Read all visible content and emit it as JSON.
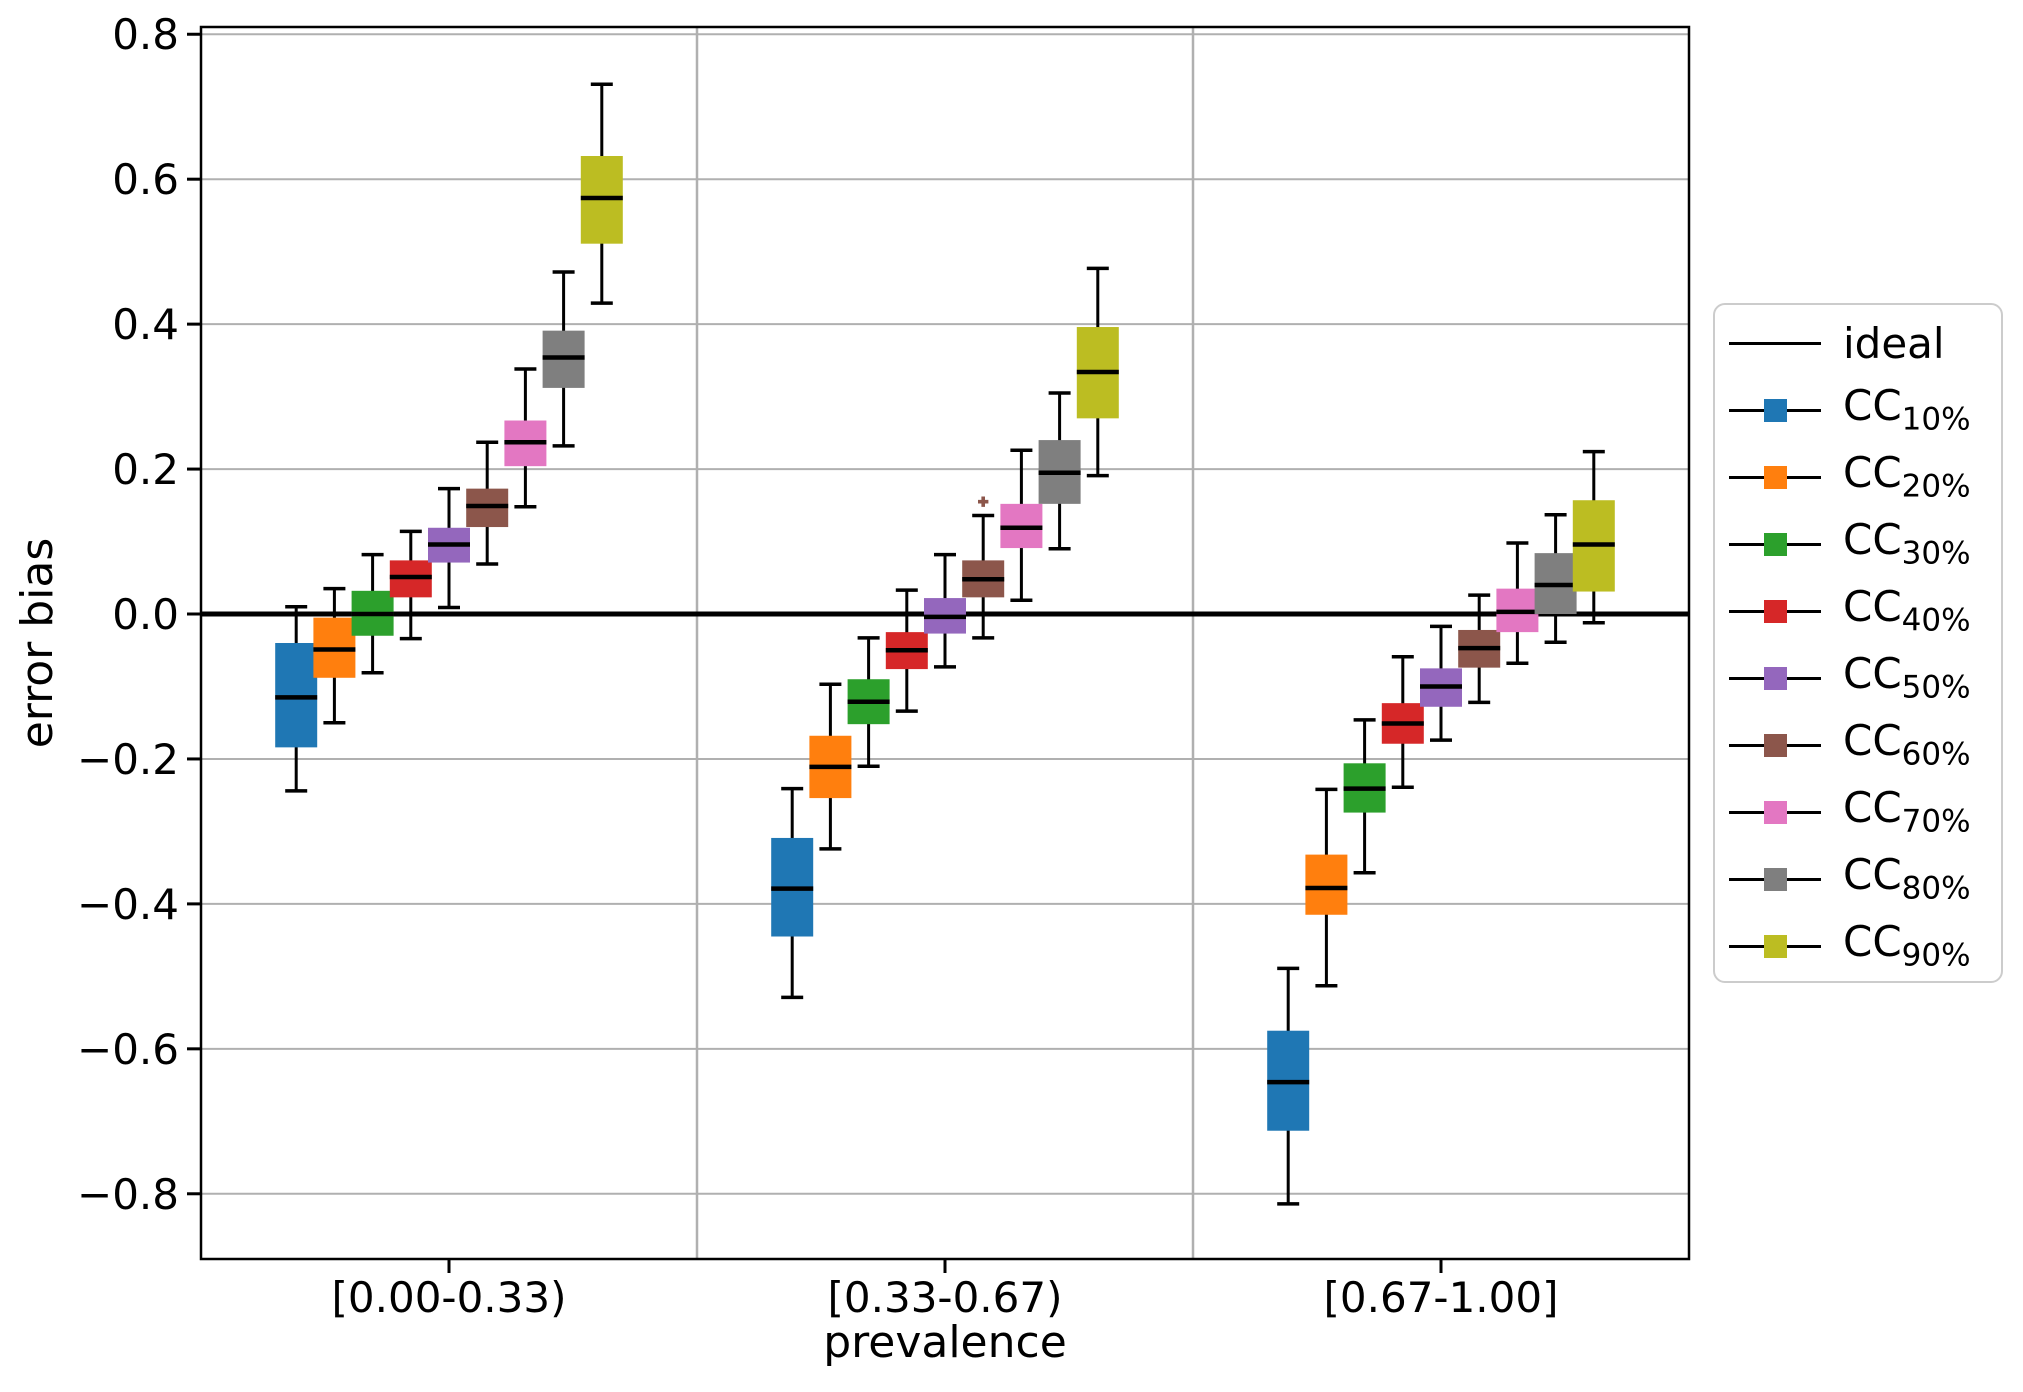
{
  "figure": {
    "background": "#ffffff",
    "grid_color": "#b0b0b0",
    "spine_color": "#000000"
  },
  "chart_data": {
    "type": "boxplot",
    "title": "",
    "xlabel": "prevalence",
    "ylabel": "error bias",
    "categories": [
      "[0.00-0.33)",
      "[0.33-0.67)",
      "[0.67-1.00]"
    ],
    "yticks": [
      0.8,
      0.6,
      0.4,
      0.2,
      0.0,
      -0.2,
      -0.4,
      -0.6,
      -0.8
    ],
    "yticklabels": [
      "0.8",
      "0.6",
      "0.4",
      "0.2",
      "0.0",
      "−0.2",
      "−0.4",
      "−0.6",
      "−0.8"
    ],
    "ylim": [
      -0.89,
      0.81
    ],
    "grid": true,
    "legend_position": "right-outside",
    "ideal_label": "ideal",
    "ideal_line_y": 0.0,
    "box_format": [
      "whislo",
      "q1",
      "median",
      "q3",
      "whishi"
    ],
    "series": [
      {
        "name": "CC",
        "sub": "10%",
        "color": "#1f77b4",
        "boxes": [
          [
            -0.244,
            -0.184,
            -0.115,
            -0.04,
            0.01
          ],
          [
            -0.529,
            -0.445,
            -0.379,
            -0.309,
            -0.241
          ],
          [
            -0.814,
            -0.713,
            -0.646,
            -0.575,
            -0.489
          ]
        ],
        "fliers": [
          [],
          [],
          []
        ]
      },
      {
        "name": "CC",
        "sub": "20%",
        "color": "#ff7f0e",
        "boxes": [
          [
            -0.15,
            -0.088,
            -0.049,
            -0.005,
            0.035
          ],
          [
            -0.324,
            -0.254,
            -0.211,
            -0.168,
            -0.097
          ],
          [
            -0.513,
            -0.415,
            -0.378,
            -0.332,
            -0.242
          ]
        ],
        "fliers": [
          [],
          [],
          []
        ]
      },
      {
        "name": "CC",
        "sub": "30%",
        "color": "#2ca02c",
        "boxes": [
          [
            -0.081,
            -0.03,
            0.0,
            0.032,
            0.082
          ],
          [
            -0.21,
            -0.152,
            -0.121,
            -0.09,
            -0.033
          ],
          [
            -0.357,
            -0.274,
            -0.241,
            -0.206,
            -0.146
          ]
        ],
        "fliers": [
          [],
          [],
          []
        ]
      },
      {
        "name": "CC",
        "sub": "40%",
        "color": "#d62728",
        "boxes": [
          [
            -0.034,
            0.023,
            0.051,
            0.074,
            0.114
          ],
          [
            -0.134,
            -0.076,
            -0.05,
            -0.025,
            0.033
          ],
          [
            -0.239,
            -0.179,
            -0.151,
            -0.123,
            -0.059
          ]
        ],
        "fliers": [
          [],
          [],
          []
        ]
      },
      {
        "name": "CC",
        "sub": "50%",
        "color": "#9467bd",
        "boxes": [
          [
            0.009,
            0.071,
            0.096,
            0.119,
            0.173
          ],
          [
            -0.073,
            -0.027,
            -0.004,
            0.022,
            0.082
          ],
          [
            -0.174,
            -0.128,
            -0.1,
            -0.075,
            -0.017
          ]
        ],
        "fliers": [
          [],
          [],
          []
        ]
      },
      {
        "name": "CC",
        "sub": "60%",
        "color": "#8c564b",
        "boxes": [
          [
            0.069,
            0.12,
            0.149,
            0.173,
            0.237
          ],
          [
            -0.033,
            0.023,
            0.048,
            0.074,
            0.136
          ],
          [
            -0.122,
            -0.074,
            -0.047,
            -0.022,
            0.026
          ]
        ],
        "fliers": [
          [],
          [
            0.155
          ],
          []
        ]
      },
      {
        "name": "CC",
        "sub": "70%",
        "color": "#e377c2",
        "boxes": [
          [
            0.148,
            0.204,
            0.237,
            0.267,
            0.338
          ],
          [
            0.019,
            0.091,
            0.119,
            0.152,
            0.226
          ],
          [
            -0.068,
            -0.025,
            0.003,
            0.035,
            0.098
          ]
        ],
        "fliers": [
          [],
          [],
          []
        ]
      },
      {
        "name": "CC",
        "sub": "80%",
        "color": "#7f7f7f",
        "boxes": [
          [
            0.232,
            0.312,
            0.354,
            0.391,
            0.472
          ],
          [
            0.09,
            0.152,
            0.195,
            0.24,
            0.305
          ],
          [
            -0.039,
            0.0,
            0.04,
            0.084,
            0.137
          ]
        ],
        "fliers": [
          [],
          [],
          []
        ]
      },
      {
        "name": "CC",
        "sub": "90%",
        "color": "#bcbd22",
        "boxes": [
          [
            0.429,
            0.511,
            0.574,
            0.632,
            0.731
          ],
          [
            0.191,
            0.27,
            0.334,
            0.396,
            0.477
          ],
          [
            -0.012,
            0.031,
            0.096,
            0.157,
            0.224
          ]
        ],
        "fliers": [
          [],
          [],
          []
        ]
      }
    ]
  }
}
